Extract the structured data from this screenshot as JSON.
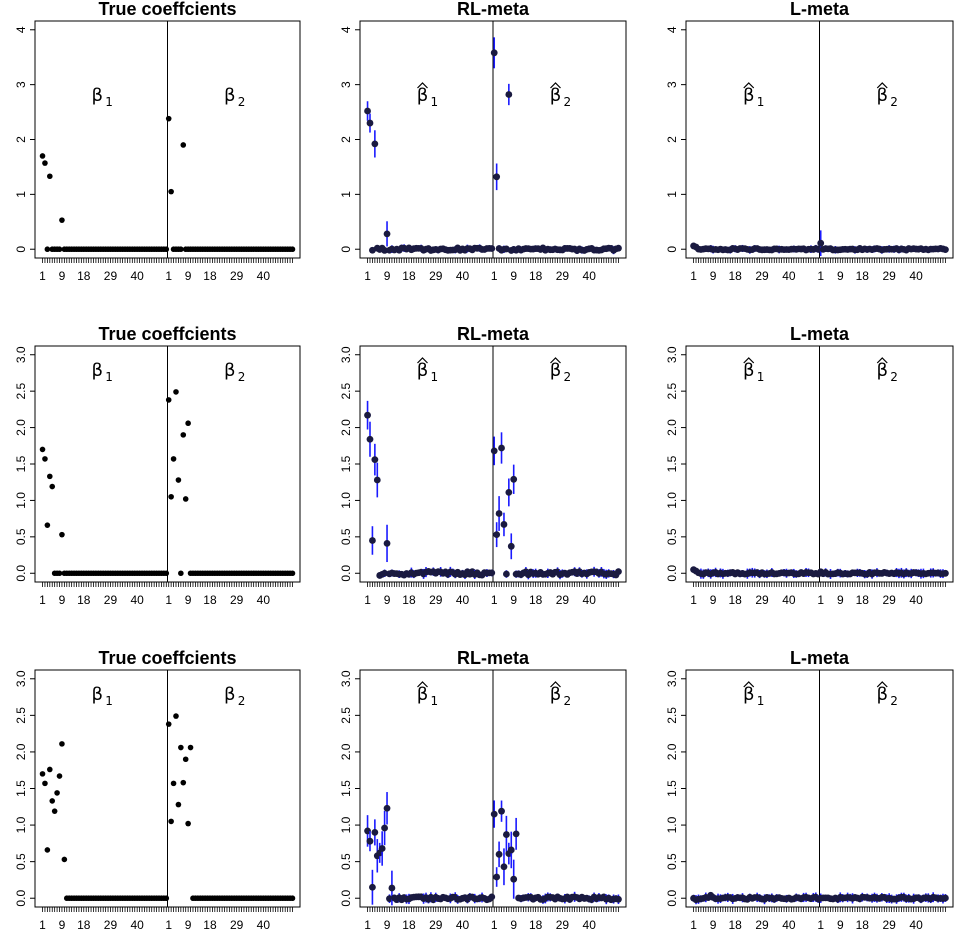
{
  "chart_data": [
    {
      "type": "scatter",
      "title": "True coeffcients",
      "ylim": [
        0,
        4
      ],
      "yticks": [
        "0",
        "1",
        "2",
        "3",
        "4"
      ],
      "xticks": [
        "1",
        "9",
        "18",
        "29",
        "40"
      ],
      "labels": [
        "β1",
        "β2"
      ],
      "hat": false,
      "error_bars": false,
      "beta1": {
        "1": 1.7,
        "2": 1.57,
        "4": 1.33,
        "9": 0.53
      },
      "beta2": {
        "1": 2.38,
        "2": 1.05,
        "7": 1.9
      }
    },
    {
      "type": "scatter",
      "title": "RL-meta",
      "ylim": [
        0,
        4
      ],
      "yticks": [
        "0",
        "1",
        "2",
        "3",
        "4"
      ],
      "xticks": [
        "1",
        "9",
        "18",
        "29",
        "40"
      ],
      "labels": [
        "β1",
        "β2"
      ],
      "hat": true,
      "error_bars": true,
      "noise": 0.025,
      "beta1": {
        "1": 2.52,
        "2": 2.3,
        "4": 1.92,
        "9": 0.28
      },
      "beta2": {
        "1": 3.58,
        "2": 1.32,
        "7": 2.82
      }
    },
    {
      "type": "scatter",
      "title": "L-meta",
      "ylim": [
        0,
        4
      ],
      "yticks": [
        "0",
        "1",
        "2",
        "3",
        "4"
      ],
      "xticks": [
        "1",
        "9",
        "18",
        "29",
        "40"
      ],
      "labels": [
        "β1",
        "β2"
      ],
      "hat": true,
      "error_bars": true,
      "noise": 0.015,
      "beta1": {
        "1": 0.06,
        "2": 0.04
      },
      "beta2": {
        "1": 0.11
      }
    },
    {
      "type": "scatter",
      "title": "True coeffcients",
      "ylim": [
        0,
        3
      ],
      "yticks": [
        "0.0",
        "0.5",
        "1.0",
        "1.5",
        "2.0",
        "2.5",
        "3.0"
      ],
      "xticks": [
        "1",
        "9",
        "18",
        "29",
        "40"
      ],
      "labels": [
        "β1",
        "β2"
      ],
      "hat": false,
      "error_bars": false,
      "beta1": {
        "1": 1.7,
        "2": 1.57,
        "4": 1.33,
        "5": 1.19,
        "3": 0.66,
        "9": 0.53
      },
      "beta2": {
        "1": 2.38,
        "2": 1.05,
        "3": 1.57,
        "4": 2.49,
        "5": 1.28,
        "7": 1.9,
        "8": 1.02,
        "9": 2.06
      }
    },
    {
      "type": "scatter",
      "title": "RL-meta",
      "ylim": [
        0,
        3
      ],
      "yticks": [
        "0.0",
        "0.5",
        "1.0",
        "1.5",
        "2.0",
        "2.5",
        "3.0"
      ],
      "xticks": [
        "1",
        "9",
        "18",
        "29",
        "40"
      ],
      "labels": [
        "β1",
        "β2"
      ],
      "hat": true,
      "error_bars": true,
      "noise": 0.025,
      "beta1": {
        "1": 2.17,
        "2": 1.84,
        "3": 0.45,
        "4": 1.56,
        "5": 1.28,
        "6": -0.03,
        "9": 0.41
      },
      "beta2": {
        "1": 1.68,
        "2": 0.53,
        "3": 0.82,
        "4": 1.72,
        "5": 0.67,
        "7": 1.11,
        "8": 0.37,
        "9": 1.29
      }
    },
    {
      "type": "scatter",
      "title": "L-meta",
      "ylim": [
        0,
        3
      ],
      "yticks": [
        "0.0",
        "0.5",
        "1.0",
        "1.5",
        "2.0",
        "2.5",
        "3.0"
      ],
      "xticks": [
        "1",
        "9",
        "18",
        "29",
        "40"
      ],
      "labels": [
        "β1",
        "β2"
      ],
      "hat": true,
      "error_bars": true,
      "noise": 0.012,
      "beta1": {
        "1": 0.05,
        "2": 0.03
      },
      "beta2": {
        "1": 0.02
      }
    },
    {
      "type": "scatter",
      "title": "True coeffcients",
      "ylim": [
        0,
        3
      ],
      "yticks": [
        "0.0",
        "0.5",
        "1.0",
        "1.5",
        "2.0",
        "2.5",
        "3.0"
      ],
      "xticks": [
        "1",
        "9",
        "18",
        "29",
        "40"
      ],
      "labels": [
        "β1",
        "β2"
      ],
      "hat": false,
      "error_bars": false,
      "beta1": {
        "1": 1.7,
        "2": 1.57,
        "3": 0.66,
        "4": 1.76,
        "5": 1.33,
        "6": 1.19,
        "7": 1.44,
        "8": 1.67,
        "9": 2.11,
        "10": 0.53
      },
      "beta2": {
        "1": 2.38,
        "2": 1.05,
        "3": 1.57,
        "4": 2.49,
        "5": 1.28,
        "6": 2.06,
        "7": 1.58,
        "8": 1.9,
        "9": 1.02,
        "10": 2.06
      }
    },
    {
      "type": "scatter",
      "title": "RL-meta",
      "ylim": [
        0,
        3
      ],
      "yticks": [
        "0.0",
        "0.5",
        "1.0",
        "1.5",
        "2.0",
        "2.5",
        "3.0"
      ],
      "xticks": [
        "1",
        "9",
        "18",
        "29",
        "40"
      ],
      "labels": [
        "β1",
        "β2"
      ],
      "hat": true,
      "error_bars": true,
      "noise": 0.02,
      "beta1": {
        "1": 0.92,
        "2": 0.78,
        "3": 0.15,
        "4": 0.9,
        "5": 0.58,
        "6": 0.62,
        "7": 0.68,
        "8": 0.96,
        "9": 1.23,
        "11": 0.14
      },
      "beta2": {
        "1": 1.15,
        "2": 0.29,
        "3": 0.6,
        "4": 1.19,
        "5": 0.43,
        "6": 0.87,
        "7": 0.61,
        "8": 0.66,
        "9": 0.26,
        "10": 0.88
      }
    },
    {
      "type": "scatter",
      "title": "L-meta",
      "ylim": [
        0,
        3
      ],
      "yticks": [
        "0.0",
        "0.5",
        "1.0",
        "1.5",
        "2.0",
        "2.5",
        "3.0"
      ],
      "xticks": [
        "1",
        "9",
        "18",
        "29",
        "40"
      ],
      "labels": [
        "β1",
        "β2"
      ],
      "hat": true,
      "error_bars": true,
      "noise": 0.015,
      "beta1": {
        "1": 0.0,
        "2": -0.02,
        "8": 0.04
      },
      "beta2": {
        "1": 0.0
      }
    }
  ],
  "colors": {
    "point": "#000000",
    "hat_point": "#1a1a40",
    "error_bar": "#1a1aff",
    "axis": "#000000"
  }
}
